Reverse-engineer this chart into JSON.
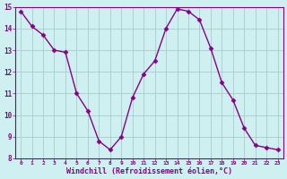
{
  "x": [
    0,
    1,
    2,
    3,
    4,
    5,
    6,
    7,
    8,
    9,
    10,
    11,
    12,
    13,
    14,
    15,
    16,
    17,
    18,
    19,
    20,
    21,
    22,
    23
  ],
  "y": [
    14.8,
    14.1,
    13.7,
    13.0,
    12.9,
    11.0,
    10.2,
    8.8,
    8.4,
    9.0,
    10.8,
    11.9,
    12.5,
    14.0,
    14.9,
    14.8,
    14.4,
    13.1,
    11.5,
    10.7,
    9.4,
    8.6,
    8.5,
    8.4
  ],
  "line_color": "#880088",
  "marker": "D",
  "marker_size": 2.5,
  "bg_color": "#cff0f0",
  "grid_color": "#aacccc",
  "xlabel": "Windchill (Refroidissement éolien,°C)",
  "xlabel_color": "#880088",
  "tick_color": "#880088",
  "ylim": [
    8,
    15
  ],
  "xlim": [
    -0.5,
    23.5
  ],
  "yticks": [
    8,
    9,
    10,
    11,
    12,
    13,
    14,
    15
  ],
  "xticks": [
    0,
    1,
    2,
    3,
    4,
    5,
    6,
    7,
    8,
    9,
    10,
    11,
    12,
    13,
    14,
    15,
    16,
    17,
    18,
    19,
    20,
    21,
    22,
    23
  ],
  "xtick_labels": [
    "0",
    "1",
    "2",
    "3",
    "4",
    "5",
    "6",
    "7",
    "8",
    "9",
    "10",
    "11",
    "12",
    "13",
    "14",
    "15",
    "16",
    "17",
    "18",
    "19",
    "20",
    "21",
    "22",
    "23"
  ]
}
